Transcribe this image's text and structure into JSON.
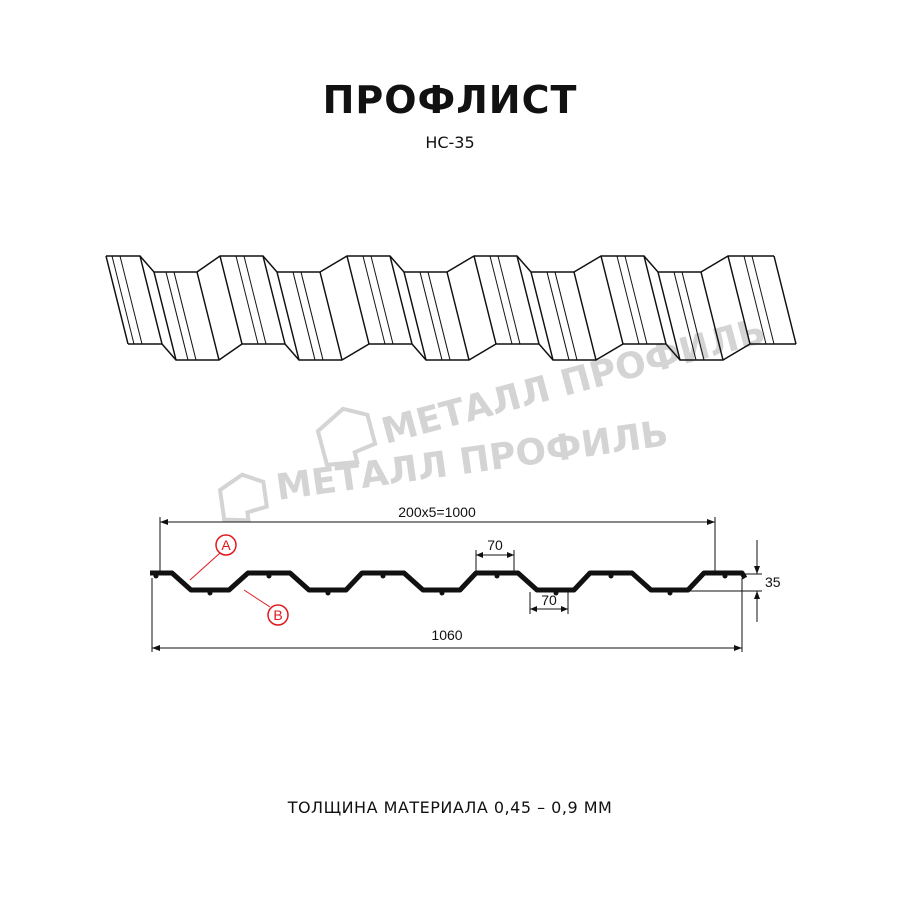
{
  "title": "ПРОФЛИСТ",
  "subtitle": "НС-35",
  "watermark": "МЕТАЛЛ ПРОФИЛЬ",
  "section": {
    "dim_pitch_total": "200x5=1000",
    "dim_full_width": "1060",
    "dim_crest_width": "70",
    "dim_valley_width": "70",
    "dim_height": "35",
    "marker_a": "A",
    "marker_b": "B"
  },
  "colors": {
    "profile": "#111111",
    "marker": "#e0191e",
    "watermark": "#d4d4d4"
  },
  "footer": "ТОЛЩИНА МАТЕРИАЛА 0,45 – 0,9 ММ"
}
